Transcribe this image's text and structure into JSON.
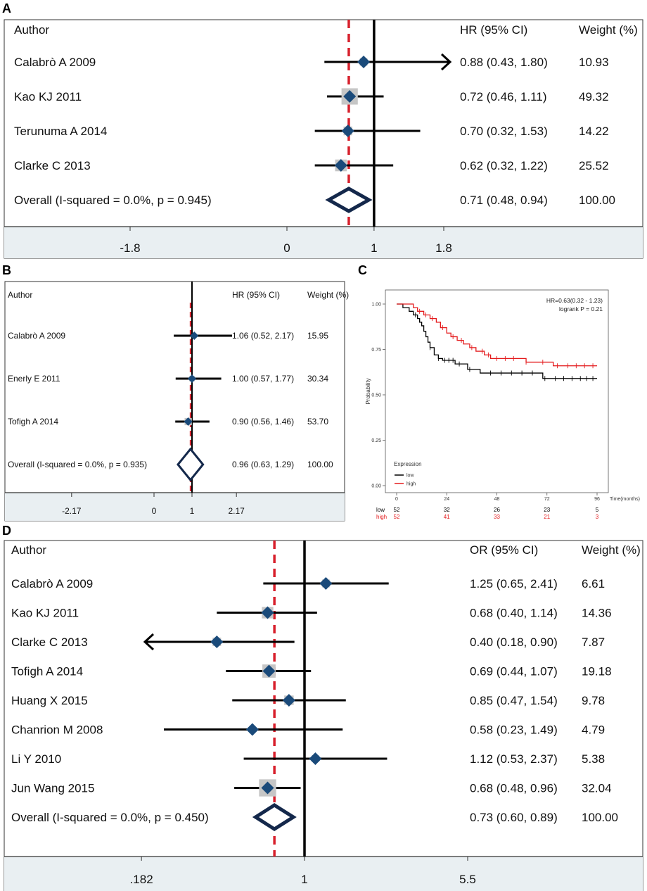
{
  "panel_labels": {
    "a": "A",
    "b": "B",
    "c": "C",
    "d": "D"
  },
  "chart_data": [
    {
      "id": "A",
      "type": "forest",
      "header": {
        "author": "Author",
        "effect": "HR (95% CI)",
        "weight": "Weight (%)"
      },
      "studies": [
        {
          "label": "Calabrò A 2009",
          "est": 0.88,
          "lo": 0.43,
          "hi": 1.8,
          "ci_text": "0.88 (0.43, 1.80)",
          "weight": "10.93",
          "arrow": "right"
        },
        {
          "label": "Kao KJ 2011",
          "est": 0.72,
          "lo": 0.46,
          "hi": 1.11,
          "ci_text": "0.72 (0.46, 1.11)",
          "weight": "49.32"
        },
        {
          "label": "Terunuma A 2014",
          "est": 0.7,
          "lo": 0.32,
          "hi": 1.53,
          "ci_text": "0.70 (0.32, 1.53)",
          "weight": "14.22"
        },
        {
          "label": "Clarke C 2013",
          "est": 0.62,
          "lo": 0.32,
          "hi": 1.22,
          "ci_text": "0.62 (0.32, 1.22)",
          "weight": "25.52"
        }
      ],
      "overall": {
        "label": "Overall  (I-squared = 0.0%, p = 0.945)",
        "est": 0.71,
        "lo": 0.48,
        "hi": 0.94,
        "ci_text": "0.71 (0.48, 0.94)",
        "weight": "100.00"
      },
      "axis_ticks": [
        {
          "value": -1.8,
          "label": "-1.8"
        },
        {
          "value": 0,
          "label": "0"
        },
        {
          "value": 1,
          "label": "1"
        },
        {
          "value": 1.8,
          "label": "1.8"
        }
      ],
      "null_value": 1,
      "scale": "linear"
    },
    {
      "id": "B",
      "type": "forest",
      "header": {
        "author": "Author",
        "effect": "HR (95% CI)",
        "weight": "Weight (%)"
      },
      "studies": [
        {
          "label": "Calabrò A 2009",
          "est": 1.06,
          "lo": 0.52,
          "hi": 2.17,
          "ci_text": "1.06 (0.52, 2.17)",
          "weight": "15.95"
        },
        {
          "label": "Enerly E 2011",
          "est": 1.0,
          "lo": 0.57,
          "hi": 1.77,
          "ci_text": "1.00 (0.57, 1.77)",
          "weight": "30.34"
        },
        {
          "label": "Tofigh A 2014",
          "est": 0.9,
          "lo": 0.56,
          "hi": 1.46,
          "ci_text": "0.90 (0.56, 1.46)",
          "weight": "53.70"
        }
      ],
      "overall": {
        "label": "Overall  (I-squared = 0.0%, p = 0.935)",
        "est": 0.96,
        "lo": 0.63,
        "hi": 1.29,
        "ci_text": "0.96 (0.63, 1.29)",
        "weight": "100.00"
      },
      "axis_ticks": [
        {
          "value": -2.17,
          "label": "-2.17"
        },
        {
          "value": 0,
          "label": "0"
        },
        {
          "value": 1,
          "label": "1"
        },
        {
          "value": 2.17,
          "label": "2.17"
        }
      ],
      "null_value": 1,
      "scale": "linear"
    },
    {
      "id": "C",
      "type": "line",
      "subtype": "kaplan-meier",
      "annotation": {
        "hr": "HR=0.63(0.32 - 1.23)",
        "logrank": "logrank P = 0.21"
      },
      "ylabel": "Probability",
      "xlabel": "Time(months)",
      "xlim": [
        0,
        96
      ],
      "ylim": [
        0,
        1
      ],
      "x_ticks": [
        {
          "value": 0,
          "label": "0"
        },
        {
          "value": 24,
          "label": "24"
        },
        {
          "value": 48,
          "label": "48"
        },
        {
          "value": 72,
          "label": "72"
        },
        {
          "value": 96,
          "label": "96"
        }
      ],
      "y_ticks": [
        {
          "value": 0,
          "label": "0.00"
        },
        {
          "value": 0.25,
          "label": "0.25"
        },
        {
          "value": 0.5,
          "label": "0.50"
        },
        {
          "value": 0.75,
          "label": "0.75"
        },
        {
          "value": 1,
          "label": "1.00"
        }
      ],
      "legend": {
        "title": "Expression",
        "position": "bottom-left"
      },
      "series": [
        {
          "name": "low",
          "color": "#000000",
          "x": [
            0,
            3,
            6,
            8,
            10,
            11,
            12,
            13,
            14,
            15,
            16,
            18,
            20,
            22,
            28,
            34,
            40,
            70,
            96
          ],
          "y": [
            1.0,
            0.98,
            0.96,
            0.94,
            0.92,
            0.9,
            0.88,
            0.85,
            0.82,
            0.79,
            0.76,
            0.72,
            0.7,
            0.69,
            0.67,
            0.64,
            0.62,
            0.59,
            0.59
          ],
          "censor_x": [
            9,
            16,
            20,
            23,
            25,
            27,
            30,
            35,
            45,
            50,
            55,
            60,
            65,
            71,
            76,
            80,
            84,
            88,
            91,
            94
          ],
          "at_risk": [
            "52",
            "32",
            "26",
            "23",
            "5"
          ]
        },
        {
          "name": "high",
          "color": "#e41a1c",
          "x": [
            0,
            8,
            10,
            13,
            16,
            19,
            21,
            24,
            26,
            29,
            32,
            35,
            38,
            42,
            45,
            60,
            62,
            68,
            75,
            80,
            96
          ],
          "y": [
            1.0,
            0.98,
            0.96,
            0.94,
            0.92,
            0.9,
            0.87,
            0.84,
            0.82,
            0.8,
            0.78,
            0.76,
            0.74,
            0.72,
            0.7,
            0.7,
            0.68,
            0.68,
            0.66,
            0.66,
            0.66
          ],
          "censor_x": [
            11,
            14,
            17,
            22,
            27,
            31,
            36,
            41,
            44,
            48,
            52,
            56,
            62,
            70,
            77,
            82,
            86,
            90,
            94
          ],
          "at_risk": [
            "52",
            "41",
            "33",
            "21",
            "3"
          ]
        }
      ],
      "at_risk_ticks": [
        0,
        24,
        48,
        72,
        96
      ]
    },
    {
      "id": "D",
      "type": "forest",
      "header": {
        "author": "Author",
        "effect": "OR (95% CI)",
        "weight": "Weight (%)"
      },
      "studies": [
        {
          "label": "Calabrò A 2009",
          "est": 1.25,
          "lo": 0.65,
          "hi": 2.41,
          "ci_text": "1.25 (0.65, 2.41)",
          "weight": "6.61"
        },
        {
          "label": "Kao KJ 2011",
          "est": 0.68,
          "lo": 0.4,
          "hi": 1.14,
          "ci_text": "0.68 (0.40, 1.14)",
          "weight": "14.36"
        },
        {
          "label": "Clarke C 2013",
          "est": 0.4,
          "lo": 0.18,
          "hi": 0.9,
          "ci_text": "0.40 (0.18, 0.90)",
          "weight": "7.87",
          "arrow": "left"
        },
        {
          "label": "Tofigh A 2014",
          "est": 0.69,
          "lo": 0.44,
          "hi": 1.07,
          "ci_text": "0.69 (0.44, 1.07)",
          "weight": "19.18"
        },
        {
          "label": "Huang X 2015",
          "est": 0.85,
          "lo": 0.47,
          "hi": 1.54,
          "ci_text": "0.85 (0.47, 1.54)",
          "weight": "9.78"
        },
        {
          "label": "Chanrion M 2008",
          "est": 0.58,
          "lo": 0.23,
          "hi": 1.49,
          "ci_text": "0.58 (0.23, 1.49)",
          "weight": "4.79"
        },
        {
          "label": "Li Y 2010",
          "est": 1.12,
          "lo": 0.53,
          "hi": 2.37,
          "ci_text": "1.12 (0.53, 2.37)",
          "weight": "5.38"
        },
        {
          "label": "Jun Wang 2015",
          "est": 0.68,
          "lo": 0.48,
          "hi": 0.96,
          "ci_text": "0.68 (0.48, 0.96)",
          "weight": "32.04"
        }
      ],
      "overall": {
        "label": "Overall  (I-squared = 0.0%, p = 0.450)",
        "est": 0.73,
        "lo": 0.6,
        "hi": 0.89,
        "ci_text": "0.73 (0.60, 0.89)",
        "weight": "100.00"
      },
      "axis_ticks": [
        {
          "value": 0.182,
          "label": ".182"
        },
        {
          "value": 1,
          "label": "1"
        },
        {
          "value": 5.5,
          "label": "5.5"
        }
      ],
      "null_value": 1,
      "scale": "log"
    }
  ],
  "colors": {
    "marker": "#1a4a7a",
    "diamond": "#14284b",
    "overall_line": "#d71f2b",
    "axis_band": "#e9eff2",
    "weight_box": "#c6c6c6",
    "km_high": "#e41a1c",
    "km_low": "#000000"
  }
}
